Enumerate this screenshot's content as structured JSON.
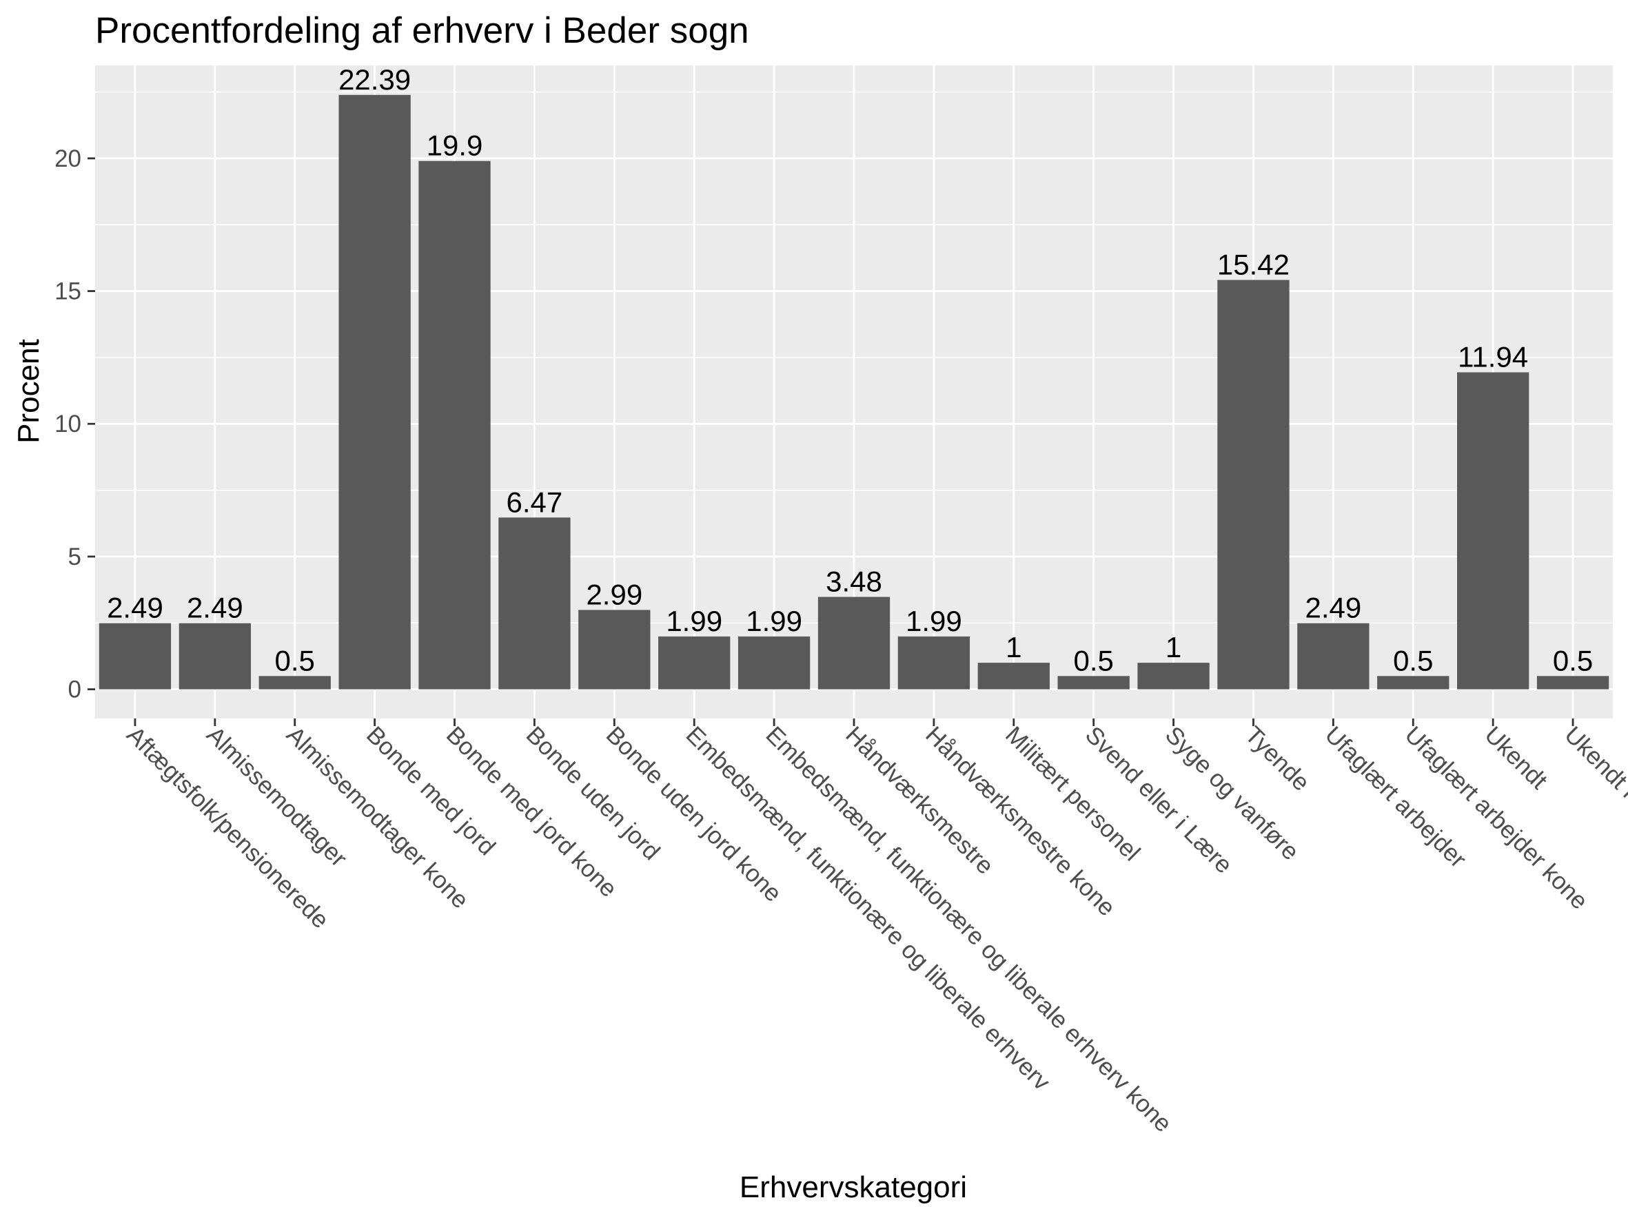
{
  "chart_data": {
    "type": "bar",
    "title": "Procentfordeling af erhverv i Beder sogn",
    "xlabel": "Erhvervskategori",
    "ylabel": "Procent",
    "ylim": [
      -1.1,
      23.5
    ],
    "yticks": [
      0,
      5,
      10,
      15,
      20
    ],
    "grid": true,
    "categories": [
      "Aftægtsfolk/pensionerede",
      "Almissemodtager",
      "Almissemodtager kone",
      "Bonde med jord",
      "Bonde med jord kone",
      "Bonde uden jord",
      "Bonde uden jord kone",
      "Embedsmænd, funktionære og liberale erhverv",
      "Embedsmænd, funktionære og liberale erhverv kone",
      "Håndværksmestre",
      "Håndværksmestre kone",
      "Militært personel",
      "Svend eller i Lære",
      "Syge og vanføre",
      "Tyende",
      "Ufaglært arbejder",
      "Ufaglært arbejder kone",
      "Ukendt",
      "Ukendt kone"
    ],
    "values": [
      2.49,
      2.49,
      0.5,
      22.39,
      19.9,
      6.47,
      2.99,
      1.99,
      1.99,
      3.48,
      1.99,
      1,
      0.5,
      1,
      15.42,
      2.49,
      0.5,
      11.94,
      0.5
    ],
    "data_labels": [
      "2.49",
      "2.49",
      "0.5",
      "22.39",
      "19.9",
      "6.47",
      "2.99",
      "1.99",
      "1.99",
      "3.48",
      "1.99",
      "1",
      "0.5",
      "1",
      "15.42",
      "2.49",
      "0.5",
      "11.94",
      "0.5"
    ],
    "colors": {
      "bar": "#595959",
      "panel": "#ebebeb",
      "grid_major": "#ffffff",
      "tick": "#333333",
      "tick_label": "#4d4d4d"
    }
  }
}
